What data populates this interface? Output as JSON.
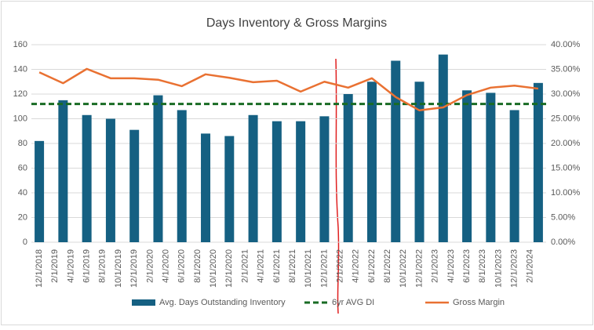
{
  "chart_data": {
    "type": "combo",
    "title": "Days Inventory & Gross Margins",
    "xticks": [
      "12/1/2018",
      "2/1/2019",
      "4/1/2019",
      "6/1/2019",
      "8/1/2019",
      "10/1/2019",
      "12/1/2019",
      "2/1/2020",
      "4/1/2020",
      "6/1/2020",
      "8/1/2020",
      "10/1/2020",
      "12/1/2020",
      "2/1/2021",
      "4/1/2021",
      "6/1/2021",
      "8/1/2021",
      "10/1/2021",
      "12/1/2021",
      "2/1/2022",
      "4/1/2022",
      "6/1/2022",
      "8/1/2022",
      "10/1/2022",
      "12/1/2022",
      "2/1/2023",
      "4/1/2023",
      "6/1/2023",
      "8/1/2023",
      "10/1/2023",
      "12/1/2023",
      "2/1/2024"
    ],
    "xlim": [
      "11/1/2018",
      "4/1/2024"
    ],
    "x": [
      "12/1/2018",
      "3/1/2019",
      "6/1/2019",
      "9/1/2019",
      "12/1/2019",
      "3/1/2020",
      "6/1/2020",
      "9/1/2020",
      "12/1/2020",
      "3/1/2021",
      "6/1/2021",
      "9/1/2021",
      "12/1/2021",
      "3/1/2022",
      "6/1/2022",
      "9/1/2022",
      "12/1/2022",
      "3/1/2023",
      "6/1/2023",
      "9/1/2023",
      "12/1/2023",
      "3/1/2024"
    ],
    "ylim": [
      0,
      160
    ],
    "yticks": [
      0,
      20,
      40,
      60,
      80,
      100,
      120,
      140,
      160
    ],
    "y2lim": [
      0,
      40
    ],
    "y2ticks": [
      {
        "value": 0,
        "label": "0.00%"
      },
      {
        "value": 5,
        "label": "5.00%"
      },
      {
        "value": 10,
        "label": "10.00%"
      },
      {
        "value": 15,
        "label": "15.00%"
      },
      {
        "value": 20,
        "label": "20.00%"
      },
      {
        "value": 25,
        "label": "25.00%"
      },
      {
        "value": 30,
        "label": "30.00%"
      },
      {
        "value": 35,
        "label": "35.00%"
      },
      {
        "value": 40,
        "label": "40.00%"
      }
    ],
    "grid": true,
    "legend": "bottom",
    "series": [
      {
        "name": "Avg. Days Outstanding Inventory",
        "type": "bar",
        "color": "#156082",
        "values": [
          82,
          115,
          103,
          100,
          91,
          119,
          107,
          88,
          86,
          103,
          98,
          98,
          102,
          120,
          130,
          147,
          130,
          152,
          123,
          121,
          107,
          129
        ]
      },
      {
        "name": "6yr AVG DI",
        "type": "hline",
        "color": "#196b24",
        "value": 112
      },
      {
        "name": "Gross Margin",
        "type": "line",
        "color": "#e97132",
        "axis": "y2",
        "values": [
          34.4,
          32.2,
          35.1,
          33.2,
          33.2,
          32.9,
          31.6,
          34.0,
          33.3,
          32.4,
          32.7,
          30.5,
          32.5,
          31.3,
          33.2,
          29.4,
          26.7,
          27.3,
          29.8,
          31.3,
          31.7,
          31.1
        ]
      }
    ]
  }
}
